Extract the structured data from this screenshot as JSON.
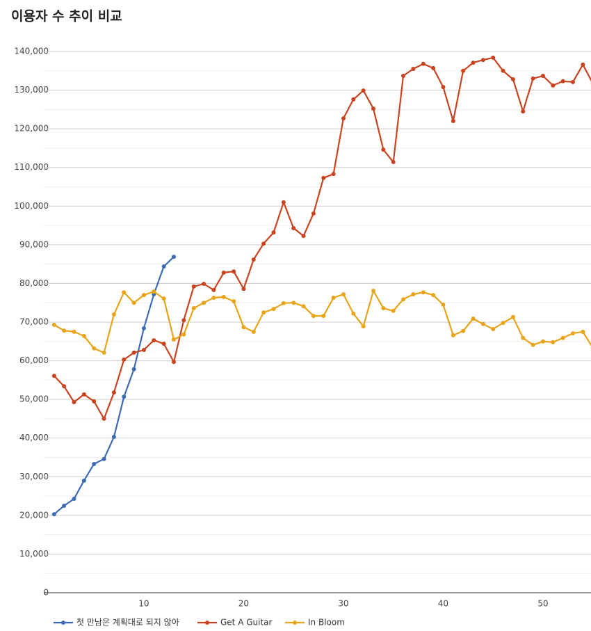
{
  "chart_data": {
    "type": "line",
    "title": "이용자 수 추이 비교",
    "x": [
      1,
      2,
      3,
      4,
      5,
      6,
      7,
      8,
      9,
      10,
      11,
      12,
      13,
      14,
      15,
      16,
      17,
      18,
      19,
      20,
      21,
      22,
      23,
      24,
      25,
      26,
      27,
      28,
      29,
      30,
      31,
      32,
      33,
      34,
      35,
      36,
      37,
      38,
      39,
      40,
      41,
      42,
      43,
      44,
      45,
      46,
      47,
      48,
      49,
      50,
      51,
      52,
      53,
      54,
      55
    ],
    "xlim": [
      1,
      55
    ],
    "xticks": [
      10,
      20,
      30,
      40,
      50
    ],
    "ylim": [
      0,
      140000
    ],
    "yticks": [
      0,
      {
        "value": 10000,
        "label": "10,000"
      },
      {
        "value": 20000,
        "label": "20,000"
      },
      {
        "value": 30000,
        "label": "30,000"
      },
      {
        "value": 40000,
        "label": "40,000"
      },
      {
        "value": 50000,
        "label": "50,000"
      },
      {
        "value": 60000,
        "label": "60,000"
      },
      {
        "value": 70000,
        "label": "70,000"
      },
      {
        "value": 80000,
        "label": "80,000"
      },
      {
        "value": 90000,
        "label": "90,000"
      },
      {
        "value": 100000,
        "label": "100,000"
      },
      {
        "value": 110000,
        "label": "110,000"
      },
      {
        "value": 120000,
        "label": "120,000"
      },
      {
        "value": 130000,
        "label": "130,000"
      },
      {
        "value": 140000,
        "label": "140,000"
      }
    ],
    "grid": true,
    "legend": "bottom",
    "series": [
      {
        "name": "첫 만남은 계획대로 되지 않아",
        "color": "#3d6bb3",
        "values": [
          20300,
          22500,
          24300,
          29000,
          33300,
          34600,
          40300,
          50700,
          57800,
          68400,
          77200,
          84400,
          86900,
          null,
          null,
          null,
          null,
          null,
          null,
          null,
          null,
          null,
          null,
          null,
          null,
          null,
          null,
          null,
          null,
          null,
          null,
          null,
          null,
          null,
          null,
          null,
          null,
          null,
          null,
          null,
          null,
          null,
          null,
          null,
          null,
          null,
          null,
          null,
          null,
          null,
          null,
          null,
          null,
          null,
          null
        ]
      },
      {
        "name": "Get A Guitar",
        "color": "#c9431f",
        "values": [
          56100,
          53400,
          49300,
          51300,
          49500,
          45000,
          51800,
          60300,
          62100,
          62800,
          65300,
          64400,
          59700,
          70500,
          79200,
          79900,
          78300,
          82800,
          83100,
          78600,
          86200,
          90300,
          93200,
          101000,
          94300,
          92300,
          98100,
          107300,
          108300,
          122700,
          127600,
          129900,
          125200,
          114600,
          111400,
          133700,
          135500,
          136800,
          135700,
          130800,
          122000,
          135000,
          137100,
          137800,
          138400,
          135000,
          132800,
          124500,
          133000,
          133700,
          131200,
          132300,
          132100,
          136600,
          131700
        ]
      },
      {
        "name": "In Bloom",
        "color": "#e8a317",
        "values": [
          69300,
          67800,
          67500,
          66400,
          63200,
          62100,
          72000,
          77700,
          75000,
          77000,
          77900,
          76100,
          65500,
          66800,
          73600,
          75000,
          76300,
          76500,
          75400,
          68700,
          67500,
          72500,
          73400,
          74900,
          75000,
          74100,
          71600,
          71600,
          76300,
          77200,
          72200,
          68900,
          78100,
          73600,
          72900,
          75900,
          77200,
          77700,
          77000,
          74500,
          66600,
          67700,
          70900,
          69500,
          68200,
          69800,
          71300,
          65900,
          64100,
          65000,
          64800,
          65900,
          67100,
          67500,
          63300
        ]
      }
    ]
  }
}
